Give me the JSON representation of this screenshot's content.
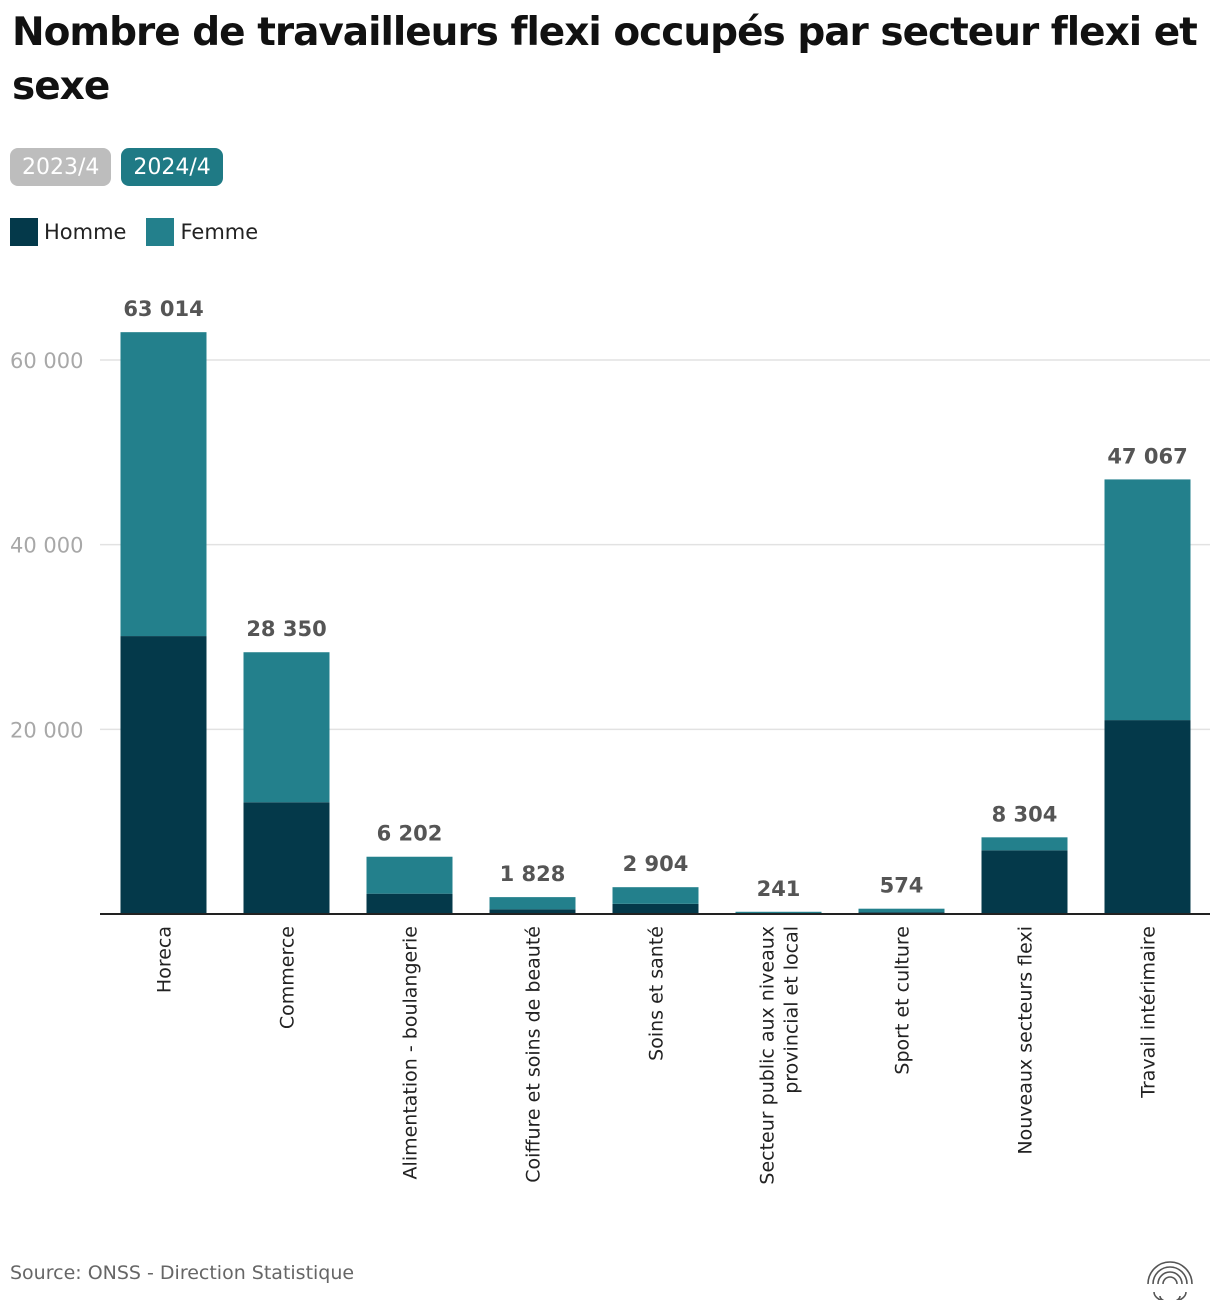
{
  "title": "Nombre de travailleurs flexi occupés par secteur flexi et sexe",
  "toggles": [
    {
      "label": "2023/4",
      "active": false
    },
    {
      "label": "2024/4",
      "active": true
    }
  ],
  "colors": {
    "homme": "#04394A",
    "femme": "#23808C",
    "toggle_inactive": "#BDBDBD",
    "toggle_active": "#1F7A85",
    "grid": "#E2E2E2",
    "axis_label": "#A8A8A8",
    "total_label": "#555555"
  },
  "legend": [
    {
      "label": "Homme",
      "color": "#04394A"
    },
    {
      "label": "Femme",
      "color": "#23808C"
    }
  ],
  "chart_data": {
    "type": "bar",
    "stacked": true,
    "categories": [
      "Horeca",
      "Commerce",
      "Alimentation - boulangerie",
      "Coiffure et soins de beauté",
      "Soins et santé",
      "Secteur public aux niveaux provincial et local",
      "Sport et culture",
      "Nouveaux secteurs flexi",
      "Travail intérimaire"
    ],
    "category_lines": [
      [
        "Horeca"
      ],
      [
        "Commerce"
      ],
      [
        "Alimentation - boulangerie"
      ],
      [
        "Coiffure et soins de beauté"
      ],
      [
        "Soins et santé"
      ],
      [
        "Secteur public aux niveaux",
        "provincial et local"
      ],
      [
        "Sport et culture"
      ],
      [
        "Nouveaux secteurs flexi"
      ],
      [
        "Travail intérimaire"
      ]
    ],
    "series": [
      {
        "name": "Homme",
        "values": [
          30100,
          12100,
          2200,
          500,
          1100,
          80,
          200,
          6900,
          21000
        ]
      },
      {
        "name": "Femme",
        "values": [
          32914,
          16250,
          4002,
          1328,
          1804,
          161,
          374,
          1404,
          26067
        ]
      }
    ],
    "totals": [
      63014,
      28350,
      6202,
      1828,
      2904,
      241,
      574,
      8304,
      47067
    ],
    "total_labels": [
      "63 014",
      "28 350",
      "6 202",
      "1 828",
      "2 904",
      "241",
      "574",
      "8 304",
      "47 067"
    ],
    "y_ticks": [
      20000,
      40000,
      60000
    ],
    "y_tick_labels": [
      "20 000",
      "40 000",
      "60 000"
    ],
    "ylim": [
      0,
      65000
    ]
  },
  "source": "Source: ONSS - Direction Statistique",
  "logo": "onss-logo"
}
